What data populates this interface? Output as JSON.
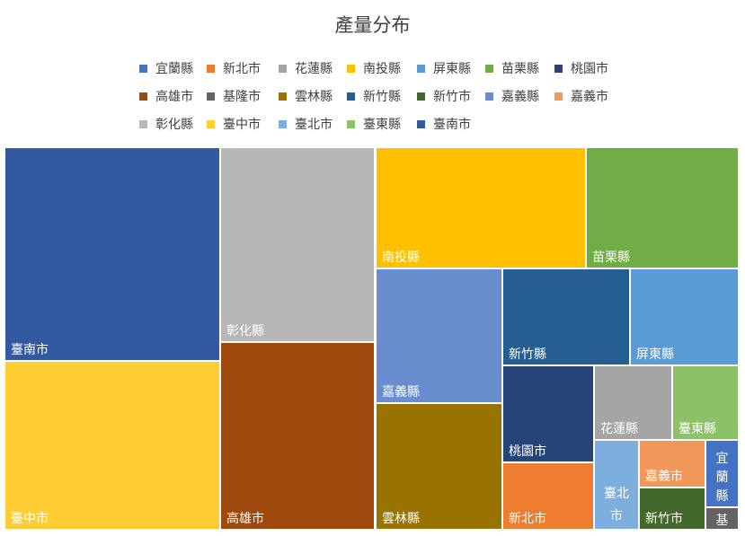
{
  "chart_data": {
    "type": "treemap",
    "title": "產量分布",
    "legend_position": "top",
    "legend": [
      {
        "name": "宜蘭縣",
        "color": "#4472C4"
      },
      {
        "name": "新北市",
        "color": "#ED7D31"
      },
      {
        "name": "花蓮縣",
        "color": "#A5A5A5"
      },
      {
        "name": "南投縣",
        "color": "#FFC000"
      },
      {
        "name": "屏東縣",
        "color": "#5B9BD5"
      },
      {
        "name": "苗栗縣",
        "color": "#70AD47"
      },
      {
        "name": "桃園市",
        "color": "#264478"
      },
      {
        "name": "高雄市",
        "color": "#9E480E"
      },
      {
        "name": "基隆市",
        "color": "#636363"
      },
      {
        "name": "雲林縣",
        "color": "#997300"
      },
      {
        "name": "新竹縣",
        "color": "#255E91"
      },
      {
        "name": "新竹市",
        "color": "#43682B"
      },
      {
        "name": "嘉義縣",
        "color": "#698ED0"
      },
      {
        "name": "嘉義市",
        "color": "#F1975A"
      },
      {
        "name": "彰化縣",
        "color": "#B7B7B7"
      },
      {
        "name": "臺中市",
        "color": "#FFCD33"
      },
      {
        "name": "臺北市",
        "color": "#7CAFDD"
      },
      {
        "name": "臺東縣",
        "color": "#8CC168"
      },
      {
        "name": "臺南市",
        "color": "#335AA1"
      }
    ],
    "data": [
      {
        "name": "臺南市",
        "value": 14.3,
        "color": "#335AA1"
      },
      {
        "name": "臺中市",
        "value": 11.5,
        "color": "#FFCD33"
      },
      {
        "name": "彰化縣",
        "value": 7.7,
        "color": "#B7B7B7"
      },
      {
        "name": "高雄市",
        "value": 7.2,
        "color": "#9E480E"
      },
      {
        "name": "南投縣",
        "value": 5.7,
        "color": "#FFC000"
      },
      {
        "name": "苗栗縣",
        "value": 4.8,
        "color": "#70AD47"
      },
      {
        "name": "嘉義縣",
        "value": 3.5,
        "color": "#698ED0"
      },
      {
        "name": "雲林縣",
        "value": 3.1,
        "color": "#997300"
      },
      {
        "name": "新竹縣",
        "value": 2.7,
        "color": "#255E91"
      },
      {
        "name": "屏東縣",
        "value": 2.3,
        "color": "#5B9BD5"
      },
      {
        "name": "桃園市",
        "value": 1.6,
        "color": "#264478"
      },
      {
        "name": "新北市",
        "value": 1.1,
        "color": "#ED7D31"
      },
      {
        "name": "花蓮縣",
        "value": 1.0,
        "color": "#A5A5A5"
      },
      {
        "name": "臺東縣",
        "value": 0.9,
        "color": "#8CC168"
      },
      {
        "name": "臺北市",
        "value": 0.6,
        "color": "#7CAFDD"
      },
      {
        "name": "嘉義市",
        "value": 0.5,
        "color": "#F1975A"
      },
      {
        "name": "新竹市",
        "value": 0.4,
        "color": "#43682B"
      },
      {
        "name": "宜蘭縣",
        "value": 0.35,
        "color": "#4472C4"
      },
      {
        "name": "基隆市",
        "value": 0.15,
        "color": "#636363"
      }
    ]
  }
}
